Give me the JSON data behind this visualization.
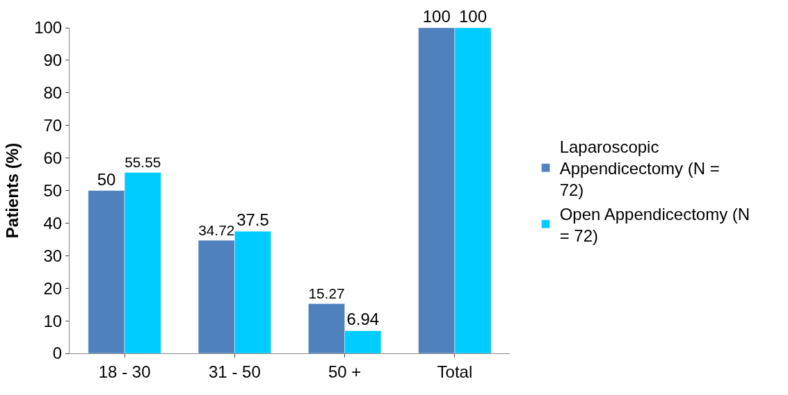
{
  "chart_data": {
    "type": "bar",
    "ylabel": "Patients (%)",
    "categories": [
      "18 - 30",
      "31 - 50",
      "50 +",
      "Total"
    ],
    "series": [
      {
        "name": "Laparoscopic Appendicectomy (N = 72)",
        "color": "#4f81bd",
        "values": [
          50,
          34.72,
          15.27,
          100
        ]
      },
      {
        "name": "Open Appendicectomy (N = 72)",
        "color": "#00ccff",
        "values": [
          55.55,
          37.5,
          6.94,
          100
        ]
      }
    ],
    "ylim": [
      0,
      100
    ],
    "yticks": [
      0,
      10,
      20,
      30,
      40,
      50,
      60,
      70,
      80,
      90,
      100
    ],
    "data_labels": true,
    "legend": "right"
  }
}
